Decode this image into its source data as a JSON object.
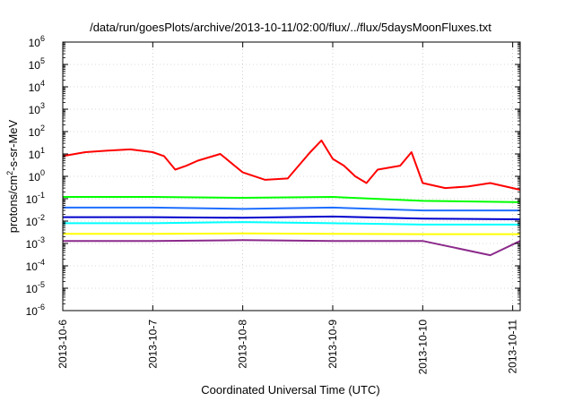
{
  "chart_data": {
    "type": "line",
    "title": "/data/run/goesPlots/archive/2013-10-11/02:00/flux/../flux/5daysMoonFluxes.txt",
    "xlabel": "Coordinated Universal Time (UTC)",
    "ylabel": {
      "pre": "protons/cm",
      "sup": "2",
      "post": "-s-sr-MeV"
    },
    "x_ticks": [
      "2013-10-6",
      "2013-10-7",
      "2013-10-8",
      "2013-10-9",
      "2013-10-10",
      "2013-10-11"
    ],
    "x_range": [
      "2013-10-06 00:00",
      "2013-10-11 02:00"
    ],
    "y_scale": "log",
    "y_ticks": [
      {
        "base": "10",
        "exp": "-6"
      },
      {
        "base": "10",
        "exp": "-5"
      },
      {
        "base": "10",
        "exp": "-4"
      },
      {
        "base": "10",
        "exp": "-3"
      },
      {
        "base": "10",
        "exp": "-2"
      },
      {
        "base": "10",
        "exp": "-1"
      },
      {
        "base": "10",
        "exp": "0"
      },
      {
        "base": "10",
        "exp": "1"
      },
      {
        "base": "10",
        "exp": "2"
      },
      {
        "base": "10",
        "exp": "3"
      },
      {
        "base": "10",
        "exp": "4"
      },
      {
        "base": "10",
        "exp": "5"
      },
      {
        "base": "10",
        "exp": "6"
      }
    ],
    "ylim": [
      1e-06,
      1000000.0
    ],
    "grid": true,
    "series": [
      {
        "color": "#ff0000",
        "x": [
          "2013-10-06 00:00",
          "2013-10-06 06:00",
          "2013-10-06 12:00",
          "2013-10-06 18:00",
          "2013-10-07 00:00",
          "2013-10-07 03:00",
          "2013-10-07 06:00",
          "2013-10-07 09:00",
          "2013-10-07 12:00",
          "2013-10-07 18:00",
          "2013-10-08 00:00",
          "2013-10-08 06:00",
          "2013-10-08 12:00",
          "2013-10-08 18:00",
          "2013-10-08 21:00",
          "2013-10-09 00:00",
          "2013-10-09 03:00",
          "2013-10-09 06:00",
          "2013-10-09 09:00",
          "2013-10-09 12:00",
          "2013-10-09 18:00",
          "2013-10-09 21:00",
          "2013-10-10 00:00",
          "2013-10-10 06:00",
          "2013-10-10 12:00",
          "2013-10-10 18:00",
          "2013-10-11 00:00",
          "2013-10-11 02:00"
        ],
        "y": [
          8,
          12,
          14,
          16,
          12,
          8,
          2,
          3,
          5,
          10,
          1.5,
          0.7,
          0.8,
          12,
          40,
          6,
          3,
          1,
          0.5,
          2,
          3,
          12,
          0.5,
          0.3,
          0.35,
          0.5,
          0.3,
          0.25
        ]
      },
      {
        "color": "#00ff00",
        "x": [
          "2013-10-06 00:00",
          "2013-10-07 00:00",
          "2013-10-08 00:00",
          "2013-10-09 00:00",
          "2013-10-10 00:00",
          "2013-10-11 02:00"
        ],
        "y": [
          0.12,
          0.12,
          0.11,
          0.12,
          0.08,
          0.07
        ]
      },
      {
        "color": "#00ffff",
        "x": [
          "2013-10-06 00:00",
          "2013-10-07 00:00",
          "2013-10-08 00:00",
          "2013-10-09 00:00",
          "2013-10-10 00:00",
          "2013-10-11 02:00"
        ],
        "y": [
          0.008,
          0.008,
          0.009,
          0.008,
          0.007,
          0.007
        ]
      },
      {
        "color": "#1e6eff",
        "x": [
          "2013-10-06 00:00",
          "2013-10-07 00:00",
          "2013-10-08 00:00",
          "2013-10-09 00:00",
          "2013-10-10 00:00",
          "2013-10-11 02:00"
        ],
        "y": [
          0.04,
          0.04,
          0.035,
          0.04,
          0.03,
          0.03
        ]
      },
      {
        "color": "#0000cc",
        "x": [
          "2013-10-06 00:00",
          "2013-10-07 00:00",
          "2013-10-08 00:00",
          "2013-10-09 00:00",
          "2013-10-10 00:00",
          "2013-10-11 02:00"
        ],
        "y": [
          0.015,
          0.015,
          0.014,
          0.016,
          0.013,
          0.012
        ]
      },
      {
        "color": "#ffff00",
        "x": [
          "2013-10-06 00:00",
          "2013-10-07 00:00",
          "2013-10-08 00:00",
          "2013-10-09 00:00",
          "2013-10-10 00:00",
          "2013-10-11 02:00"
        ],
        "y": [
          0.0027,
          0.0027,
          0.0028,
          0.0027,
          0.0026,
          0.0026
        ]
      },
      {
        "color": "#8b2a8b",
        "x": [
          "2013-10-06 00:00",
          "2013-10-06 12:00",
          "2013-10-07 00:00",
          "2013-10-08 00:00",
          "2013-10-09 00:00",
          "2013-10-10 00:00",
          "2013-10-10 18:00",
          "2013-10-11 02:00"
        ],
        "y": [
          0.0013,
          0.0013,
          0.0013,
          0.0014,
          0.0013,
          0.0013,
          0.0003,
          0.0013
        ]
      }
    ]
  }
}
